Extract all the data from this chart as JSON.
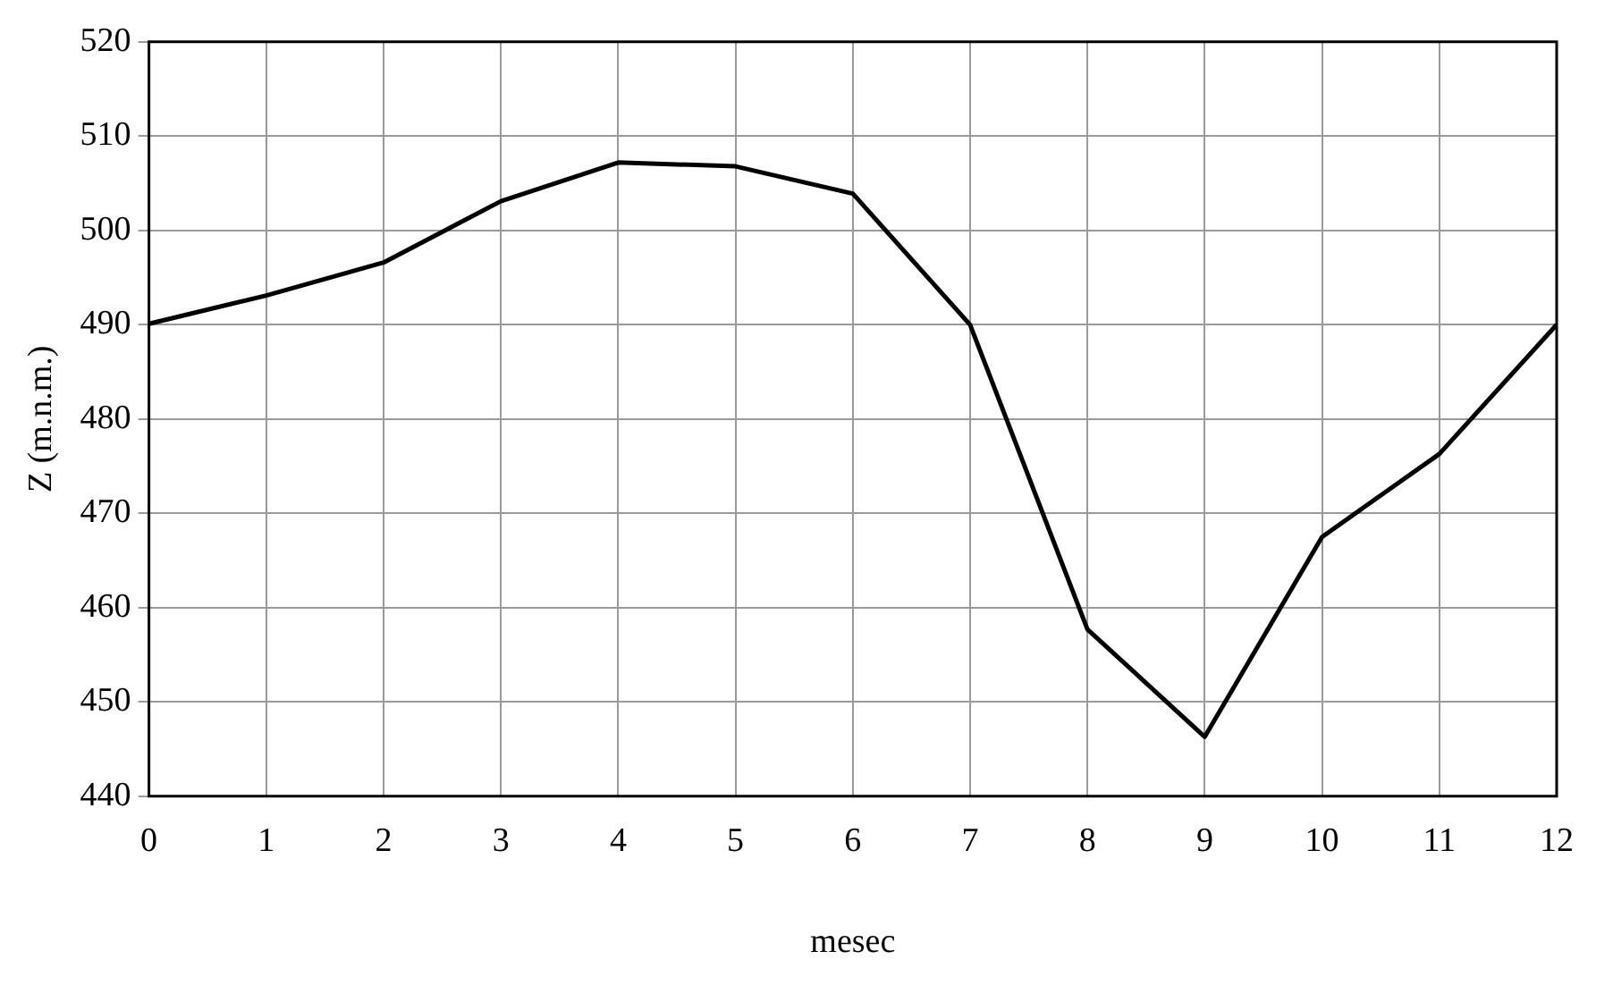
{
  "chart_data": {
    "type": "line",
    "xlabel": "mesec",
    "ylabel": "Z (m.n.m.)",
    "x": [
      0,
      1,
      2,
      3,
      4,
      5,
      6,
      7,
      8,
      9,
      10,
      11,
      12
    ],
    "series": [
      {
        "color": "#000000",
        "values": [
          490.1,
          493.1,
          496.6,
          503.1,
          507.2,
          506.8,
          503.9,
          490,
          457.7,
          446.3,
          467.5,
          476.3,
          490
        ]
      }
    ],
    "xlim": [
      0,
      12
    ],
    "xticks": [
      0,
      1,
      2,
      3,
      4,
      5,
      6,
      7,
      8,
      9,
      10,
      11,
      12
    ],
    "ylim": [
      440,
      520
    ],
    "yticks": [
      440,
      450,
      460,
      470,
      480,
      490,
      500,
      510,
      520
    ],
    "grid": true,
    "legend": false,
    "marker": "none",
    "line_style": "solid"
  }
}
